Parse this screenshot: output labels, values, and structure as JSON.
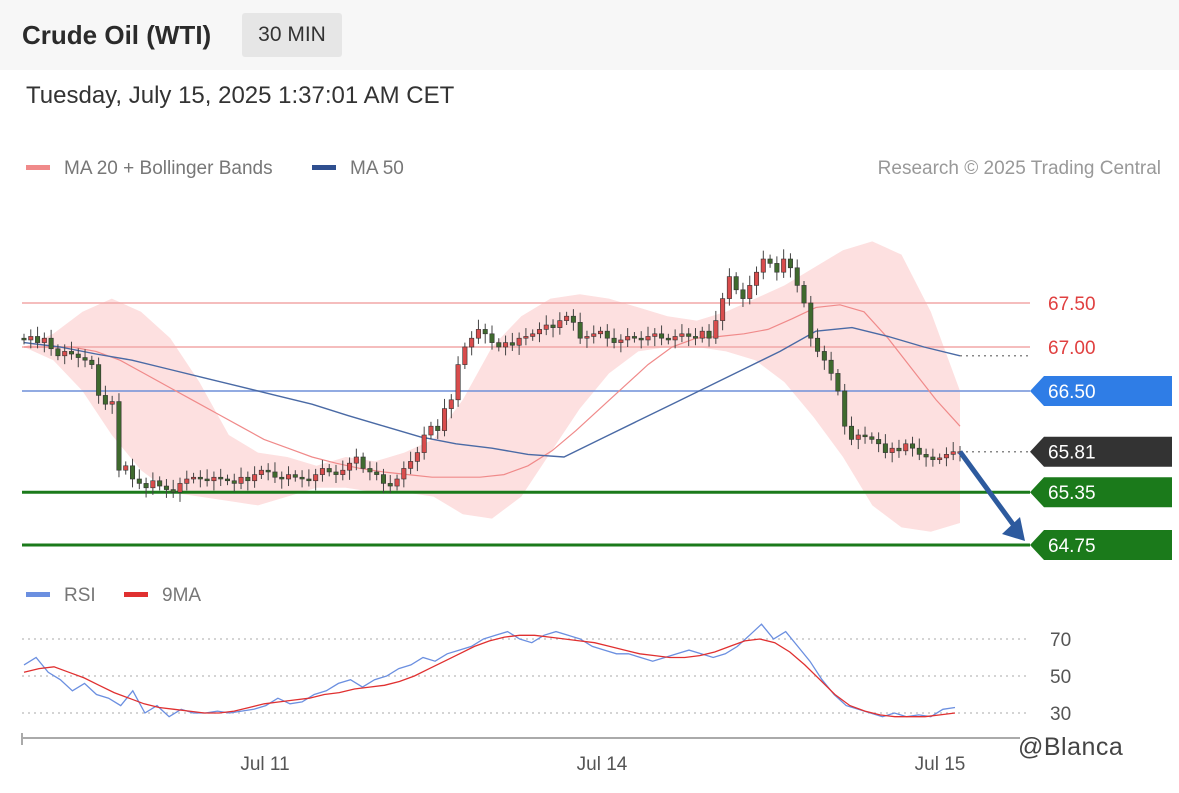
{
  "header": {
    "title": "Crude Oil (WTI)",
    "interval": "30 MIN",
    "timestamp": "Tuesday, July 15, 2025 1:37:01 AM CET"
  },
  "legend": {
    "ma20_label": "MA 20 + Bollinger Bands",
    "ma50_label": "MA 50",
    "rsi_label": "RSI",
    "rsi_ma_label": "9MA",
    "copyright": "Research © 2025 Trading Central"
  },
  "watermark": "@Blanca",
  "colors": {
    "ma20": "#f08a8a",
    "bollinger_fill": "#fde0e0",
    "ma50": "#4a6aa5",
    "candle_up": "#d94c4c",
    "candle_down": "#3f6a2e",
    "resistance": "#f2a7a7",
    "pivot": "#2f7de6",
    "support": "#1b7a1b",
    "last_price": "#333333",
    "arrow": "#2d5a9e",
    "rsi": "#6b8fe0",
    "rsi_ma": "#e03030"
  },
  "chart_data": [
    {
      "type": "candlestick",
      "title": "",
      "interval": "30 MIN",
      "x_ticks": [
        "Jul 11",
        "Jul 14",
        "Jul 15"
      ],
      "ylim": [
        64.5,
        68.1
      ],
      "levels": [
        {
          "value": 67.5,
          "label": "67.50",
          "kind": "resistance"
        },
        {
          "value": 67.0,
          "label": "67.00",
          "kind": "resistance"
        },
        {
          "value": 66.5,
          "label": "66.50",
          "kind": "pivot"
        },
        {
          "value": 65.81,
          "label": "65.81",
          "kind": "last_price"
        },
        {
          "value": 65.35,
          "label": "65.35",
          "kind": "support"
        },
        {
          "value": 64.75,
          "label": "64.75",
          "kind": "support"
        }
      ],
      "forecast_target": 64.75,
      "close": [
        67.08,
        67.12,
        67.05,
        67.1,
        66.98,
        66.9,
        66.95,
        66.92,
        66.88,
        66.85,
        66.8,
        66.45,
        66.35,
        66.38,
        65.6,
        65.65,
        65.5,
        65.45,
        65.4,
        65.48,
        65.42,
        65.38,
        65.35,
        65.45,
        65.5,
        65.52,
        65.5,
        65.48,
        65.52,
        65.5,
        65.48,
        65.45,
        65.52,
        65.48,
        65.55,
        65.6,
        65.58,
        65.52,
        65.5,
        65.55,
        65.52,
        65.5,
        65.48,
        65.55,
        65.62,
        65.58,
        65.55,
        65.6,
        65.68,
        65.75,
        65.62,
        65.58,
        65.55,
        65.45,
        65.42,
        65.5,
        65.62,
        65.7,
        65.8,
        66.0,
        66.1,
        66.05,
        66.3,
        66.4,
        66.8,
        67.0,
        67.1,
        67.2,
        67.15,
        67.05,
        67.0,
        67.05,
        67.02,
        67.1,
        67.12,
        67.15,
        67.2,
        67.25,
        67.22,
        67.3,
        67.35,
        67.28,
        67.1,
        67.12,
        67.15,
        67.18,
        67.1,
        67.05,
        67.08,
        67.12,
        67.1,
        67.08,
        67.12,
        67.15,
        67.1,
        67.08,
        67.12,
        67.15,
        67.12,
        67.1,
        67.18,
        67.1,
        67.3,
        67.55,
        67.8,
        67.65,
        67.55,
        67.7,
        67.85,
        68.0,
        67.95,
        67.85,
        68.0,
        67.9,
        67.7,
        67.5,
        67.1,
        66.95,
        66.85,
        66.7,
        66.5,
        66.1,
        65.95,
        66.0,
        65.98,
        65.95,
        65.9,
        65.8,
        65.85,
        65.82,
        65.9,
        65.85,
        65.78,
        65.75,
        65.72,
        65.74,
        65.78,
        65.81,
        65.81
      ],
      "ma20": [
        67.0,
        67.0,
        67.0,
        66.95,
        66.85,
        66.7,
        66.55,
        66.4,
        66.25,
        66.1,
        65.95,
        65.85,
        65.75,
        65.68,
        65.62,
        65.58,
        65.55,
        65.52,
        65.52,
        65.52,
        65.55,
        65.65,
        65.82,
        66.05,
        66.3,
        66.55,
        66.8,
        67.0,
        67.1,
        67.12,
        67.15,
        67.2,
        67.32,
        67.45,
        67.48,
        67.4,
        67.1,
        66.75,
        66.4,
        66.1
      ],
      "ma50": [
        67.05,
        67.0,
        66.92,
        66.85,
        66.75,
        66.65,
        66.55,
        66.45,
        66.35,
        66.22,
        66.1,
        65.98,
        65.9,
        65.85,
        65.78,
        65.75,
        65.95,
        66.15,
        66.35,
        66.55,
        66.75,
        66.95,
        67.18,
        67.22,
        67.12,
        67.0,
        66.9
      ],
      "bb_upper": [
        67.0,
        67.15,
        67.4,
        67.55,
        67.4,
        67.1,
        66.6,
        66.0,
        65.8,
        65.75,
        65.65,
        65.75,
        65.7,
        65.8,
        65.95,
        66.4,
        67.0,
        67.35,
        67.55,
        67.6,
        67.55,
        67.45,
        67.35,
        67.3,
        67.4,
        67.55,
        67.7,
        67.9,
        68.1,
        68.2,
        68.05,
        67.4,
        66.5
      ],
      "bb_lower": [
        67.0,
        66.85,
        66.5,
        66.0,
        65.6,
        65.35,
        65.3,
        65.25,
        65.2,
        65.3,
        65.4,
        65.4,
        65.35,
        65.35,
        65.3,
        65.1,
        65.05,
        65.3,
        65.8,
        66.3,
        66.7,
        66.95,
        67.0,
        67.0,
        66.95,
        66.85,
        66.6,
        66.2,
        65.75,
        65.2,
        64.95,
        64.9,
        65.0
      ]
    },
    {
      "type": "line",
      "title": "",
      "series": [
        {
          "name": "RSI",
          "values": [
            56,
            60,
            52,
            48,
            42,
            46,
            40,
            38,
            34,
            42,
            30,
            34,
            28,
            32,
            30,
            30,
            31,
            30,
            31,
            32,
            34,
            38,
            35,
            36,
            40,
            42,
            46,
            48,
            44,
            48,
            50,
            54,
            56,
            60,
            58,
            62,
            64,
            66,
            70,
            72,
            74,
            70,
            68,
            72,
            74,
            72,
            70,
            66,
            64,
            62,
            62,
            60,
            58,
            60,
            62,
            64,
            62,
            60,
            62,
            66,
            72,
            78,
            70,
            74,
            66,
            58,
            48,
            40,
            34,
            32,
            30,
            28,
            30,
            28,
            29,
            28,
            32,
            33
          ]
        },
        {
          "name": "9MA",
          "values": [
            52,
            54,
            55,
            52,
            49,
            45,
            41,
            38,
            35,
            33,
            32,
            31,
            30,
            30,
            31,
            33,
            35,
            36,
            37,
            38,
            40,
            41,
            43,
            44,
            45,
            47,
            50,
            54,
            58,
            62,
            66,
            69,
            71,
            72,
            72,
            71,
            70,
            69,
            68,
            66,
            64,
            62,
            61,
            60,
            60,
            61,
            63,
            66,
            69,
            70,
            68,
            63,
            56,
            48,
            40,
            34,
            31,
            29,
            28,
            28,
            28,
            29,
            30
          ]
        }
      ],
      "ylim": [
        10,
        85
      ],
      "y_ticks": [
        "70",
        "50",
        "30"
      ],
      "x_ticks": [
        "Jul 11",
        "Jul 14",
        "Jul 15"
      ]
    }
  ]
}
